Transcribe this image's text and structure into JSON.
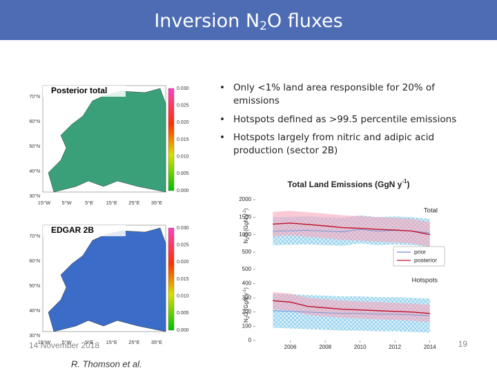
{
  "header": {
    "title": [
      "Inversion N",
      "2",
      "O fluxes"
    ]
  },
  "maps": [
    {
      "label": "Posterior total",
      "colorbar_ticks": [
        "0.030",
        "0.025",
        "0.020",
        "0.015",
        "0.010",
        "0.005",
        "0.000"
      ],
      "lat_labels": [
        "70°N",
        "60°N",
        "50°N",
        "40°N",
        "30°N"
      ],
      "lon_labels": [
        "15°W",
        "5°W",
        "5°E",
        "15°E",
        "25°E",
        "35°E"
      ]
    },
    {
      "label": "EDGAR 2B",
      "colorbar_ticks": [
        "0.030",
        "0.025",
        "0.020",
        "0.015",
        "0.010",
        "0.005",
        "0.000"
      ],
      "lat_labels": [
        "70°N",
        "60°N",
        "50°N",
        "40°N",
        "30°N"
      ],
      "lon_labels": [
        "15°W",
        "5°W",
        "5°E",
        "15°E",
        "25°E",
        "35°E"
      ]
    }
  ],
  "bullets": [
    "Only <1% land area responsible for 20% of emissions",
    "Hotspots defined as >99.5 percentile emissions",
    "Hotspots largely from nitric and adipic acid production (sector 2B)"
  ],
  "chart_title": [
    "Total Land Emissions (GgN y",
    "-1",
    ")"
  ],
  "chart_data": [
    {
      "type": "line",
      "label": "Total",
      "ylabel": [
        "N",
        "2",
        "O (GgN y",
        "-1",
        ")"
      ],
      "x": [
        2005,
        2006,
        2007,
        2008,
        2009,
        2010,
        2011,
        2012,
        2013,
        2014
      ],
      "xlim": [
        2004,
        2015
      ],
      "ylim": [
        500,
        2000
      ],
      "yticks": [
        500,
        1000,
        1500,
        2000
      ],
      "legend": "lower right",
      "series": [
        {
          "name": "prior",
          "color": "#6f8fd6",
          "values": [
            1100,
            1110,
            1120,
            1100,
            1080,
            1150,
            1100,
            1120,
            1100,
            1050
          ],
          "lower": [
            700,
            710,
            720,
            700,
            680,
            750,
            700,
            720,
            700,
            650
          ],
          "upper": [
            1500,
            1510,
            1520,
            1500,
            1480,
            1550,
            1500,
            1520,
            1500,
            1450
          ]
        },
        {
          "name": "posterior",
          "color": "#c0102a",
          "values": [
            1300,
            1330,
            1290,
            1250,
            1200,
            1180,
            1150,
            1130,
            1100,
            1000
          ],
          "lower": [
            950,
            980,
            940,
            900,
            850,
            830,
            800,
            780,
            750,
            650
          ],
          "upper": [
            1650,
            1680,
            1640,
            1600,
            1550,
            1530,
            1500,
            1480,
            1450,
            1350
          ]
        }
      ]
    },
    {
      "type": "line",
      "label": "Hotspots",
      "ylabel": [
        "N",
        "2",
        "O (GgN y",
        "-1",
        ")"
      ],
      "x": [
        2005,
        2006,
        2007,
        2008,
        2009,
        2010,
        2011,
        2012,
        2013,
        2014
      ],
      "xlim": [
        2004,
        2015
      ],
      "ylim": [
        0,
        500
      ],
      "yticks": [
        0,
        100,
        200,
        300,
        400,
        500
      ],
      "xticks": [
        2006,
        2008,
        2010,
        2012,
        2014
      ],
      "series": [
        {
          "name": "prior",
          "color": "#6f8fd6",
          "values": [
            210,
            205,
            200,
            195,
            190,
            190,
            185,
            185,
            180,
            175
          ],
          "lower": [
            90,
            85,
            80,
            75,
            70,
            70,
            65,
            65,
            60,
            55
          ],
          "upper": [
            330,
            325,
            320,
            315,
            310,
            310,
            305,
            305,
            300,
            295
          ]
        },
        {
          "name": "posterior",
          "color": "#c0102a",
          "values": [
            280,
            270,
            240,
            230,
            220,
            215,
            210,
            205,
            200,
            190
          ],
          "lower": [
            220,
            210,
            180,
            170,
            160,
            155,
            150,
            145,
            140,
            130
          ],
          "upper": [
            340,
            330,
            300,
            290,
            280,
            275,
            270,
            265,
            260,
            250
          ]
        }
      ]
    }
  ],
  "footer": {
    "date": "14 November 2018",
    "author": "R. Thomson et al.",
    "page": "19"
  }
}
